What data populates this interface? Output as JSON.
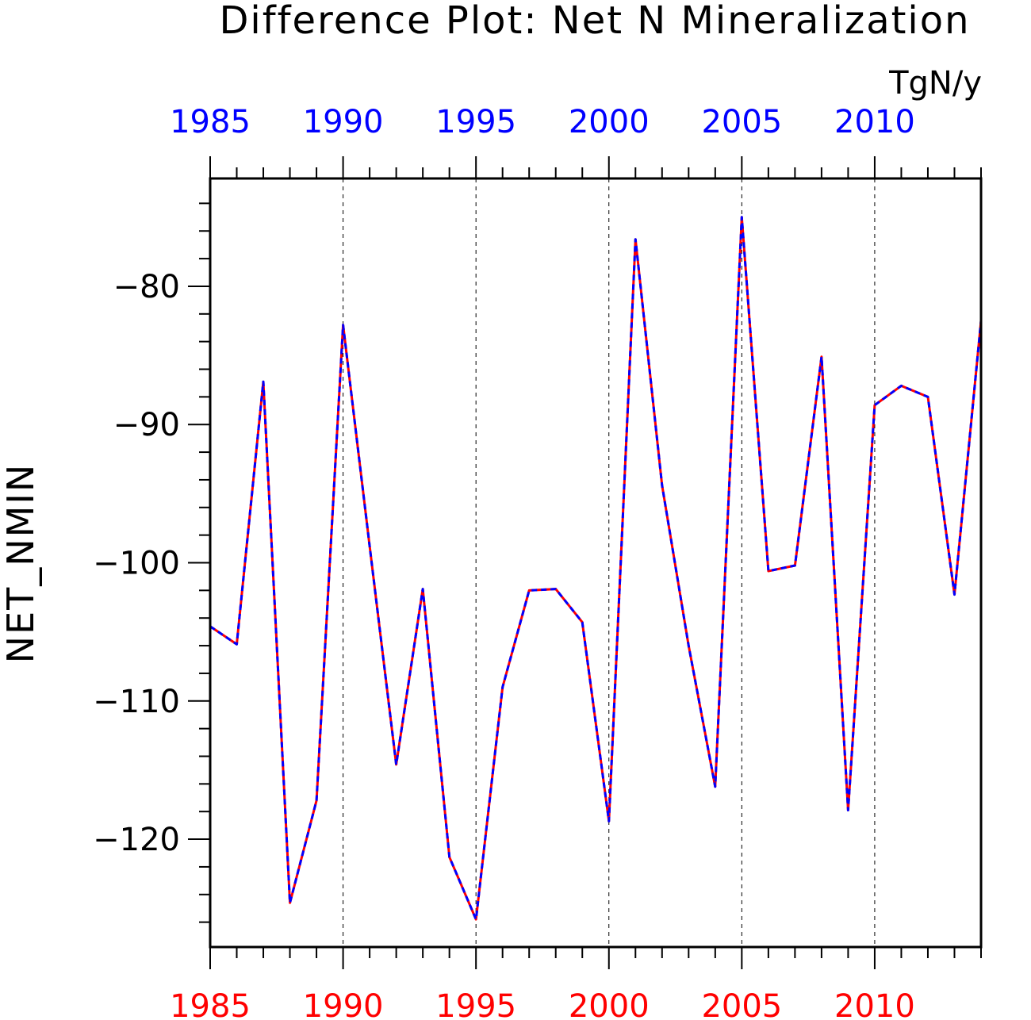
{
  "chart_data": {
    "type": "line",
    "title": "Difference Plot: Net N Mineralization",
    "units": "TgN/y",
    "ylabel": "NET_NMIN",
    "xlabel": "",
    "xlim": [
      1985,
      2014
    ],
    "ylim": [
      -127.8,
      -72.2
    ],
    "x_ticks": [
      1985,
      1990,
      1995,
      2000,
      2005,
      2010
    ],
    "y_ticks": [
      -80,
      -90,
      -100,
      -110,
      -120
    ],
    "y_tick_labels": [
      "−80",
      "−90",
      "−100",
      "−110",
      "−120"
    ],
    "x_tick_labels_bottom": [
      "1985",
      "1990",
      "1995",
      "2000",
      "2005",
      "2010"
    ],
    "x_tick_labels_top": [
      "1985",
      "1990",
      "1995",
      "2000",
      "2005",
      "2010"
    ],
    "bottom_axis_color": "#ff0000",
    "top_axis_color": "#0000ff",
    "vertical_gridlines_at": [
      1990,
      1995,
      2000,
      2005,
      2010
    ],
    "x": [
      1985,
      1986,
      1987,
      1988,
      1989,
      1990,
      1991,
      1992,
      1993,
      1994,
      1995,
      1996,
      1997,
      1998,
      1999,
      2000,
      2001,
      2002,
      2003,
      2004,
      2005,
      2006,
      2007,
      2008,
      2009,
      2010,
      2011,
      2012,
      2013,
      2014
    ],
    "series": [
      {
        "style": "solid",
        "color": "#ff0000",
        "values": [
          -104.6,
          -105.9,
          -86.9,
          -124.6,
          -117.2,
          -82.8,
          -98.8,
          -114.6,
          -101.9,
          -121.3,
          -125.8,
          -109.0,
          -102.0,
          -101.9,
          -104.3,
          -118.7,
          -76.6,
          -94.4,
          -106.0,
          -116.2,
          -75.0,
          -100.6,
          -100.2,
          -85.1,
          -117.9,
          -88.6,
          -87.2,
          -88.0,
          -102.3,
          -82.5
        ]
      },
      {
        "style": "dashed",
        "color": "#0000ff",
        "values": [
          -104.6,
          -105.9,
          -86.9,
          -124.6,
          -117.2,
          -82.8,
          -98.8,
          -114.6,
          -101.9,
          -121.3,
          -125.8,
          -109.0,
          -102.0,
          -101.9,
          -104.3,
          -118.7,
          -76.6,
          -94.4,
          -106.0,
          -116.2,
          -75.0,
          -100.6,
          -100.2,
          -85.1,
          -117.9,
          -88.6,
          -87.2,
          -88.0,
          -102.3,
          -82.5
        ]
      }
    ],
    "grid": "vertical dashed at major x ticks",
    "legend": "none"
  }
}
